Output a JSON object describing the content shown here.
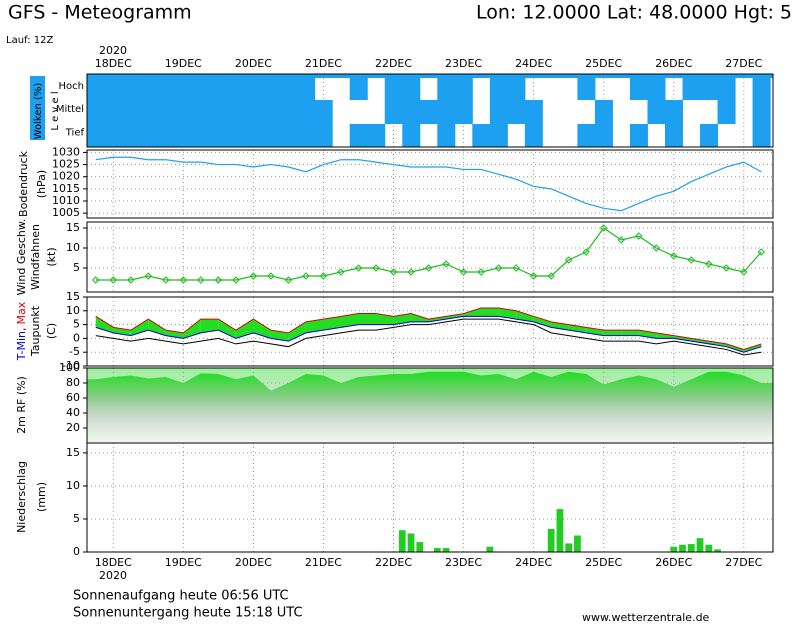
{
  "header": {
    "title": "GFS - Meteogramm",
    "location": "Lon: 12.0000 Lat: 48.0000 Hgt: 5",
    "run": "Lauf: 12Z"
  },
  "footer": {
    "sunrise": "Sonnenaufgang heute 06:56 UTC",
    "sunset": "Sonnenuntergang heute 15:18 UTC",
    "source": "www.wetterzentrale.de"
  },
  "x_axis": {
    "year": "2020",
    "xlim": [
      -9,
      226
    ],
    "xticks": [
      {
        "value": 0,
        "label": "18DEC"
      },
      {
        "value": 24,
        "label": "19DEC"
      },
      {
        "value": 48,
        "label": "20DEC"
      },
      {
        "value": 72,
        "label": "21DEC"
      },
      {
        "value": 96,
        "label": "22DEC"
      },
      {
        "value": 120,
        "label": "23DEC"
      },
      {
        "value": 144,
        "label": "24DEC"
      },
      {
        "value": 168,
        "label": "25DEC"
      },
      {
        "value": 192,
        "label": "26DEC"
      },
      {
        "value": 216,
        "label": "27DEC"
      }
    ],
    "x": [
      -6,
      0,
      6,
      12,
      18,
      24,
      30,
      36,
      42,
      48,
      54,
      60,
      66,
      72,
      78,
      84,
      90,
      96,
      102,
      108,
      114,
      120,
      126,
      132,
      138,
      144,
      150,
      156,
      162,
      168,
      174,
      180,
      186,
      192,
      198,
      204,
      210,
      216,
      222
    ]
  },
  "chart_data": [
    {
      "type": "heatmap",
      "ylabel": "Wolken (%)",
      "ylabel2": "L e v e l",
      "color": "#1ea0f0",
      "levels": [
        {
          "name": "Hoch",
          "values": [
            100,
            100,
            100,
            100,
            100,
            100,
            100,
            100,
            100,
            100,
            100,
            100,
            100,
            0,
            0,
            100,
            0,
            100,
            100,
            0,
            100,
            100,
            0,
            100,
            100,
            0,
            0,
            0,
            100,
            0,
            0,
            100,
            100,
            0,
            100,
            100,
            100,
            0,
            100
          ]
        },
        {
          "name": "Mittel",
          "values": [
            100,
            100,
            100,
            100,
            100,
            100,
            100,
            100,
            100,
            100,
            100,
            100,
            100,
            100,
            0,
            0,
            0,
            100,
            100,
            100,
            100,
            100,
            0,
            100,
            100,
            100,
            0,
            0,
            0,
            100,
            0,
            0,
            100,
            100,
            0,
            0,
            100,
            0,
            100
          ]
        },
        {
          "name": "Tief",
          "values": [
            100,
            100,
            100,
            100,
            100,
            100,
            100,
            100,
            100,
            100,
            100,
            100,
            100,
            100,
            0,
            100,
            100,
            0,
            100,
            0,
            100,
            0,
            100,
            100,
            0,
            100,
            0,
            0,
            100,
            100,
            0,
            100,
            0,
            100,
            0,
            100,
            0,
            0,
            100
          ]
        }
      ]
    },
    {
      "type": "line",
      "ylabel": "Bodendruck",
      "unit": "(hPa)",
      "color": "#1ea0f0",
      "markers": false,
      "values": [
        1027,
        1028,
        1028,
        1027,
        1027,
        1026,
        1026,
        1025,
        1025,
        1024,
        1025,
        1024,
        1022,
        1025,
        1027,
        1027,
        1026,
        1025,
        1024,
        1024,
        1024,
        1023,
        1023,
        1021,
        1019,
        1016,
        1015,
        1012,
        1009,
        1007,
        1006,
        1009,
        1012,
        1014,
        1018,
        1021,
        1024,
        1026,
        1022
      ],
      "ylim": [
        1003,
        1031
      ],
      "yticks": [
        1005,
        1010,
        1015,
        1020,
        1025,
        1030
      ]
    },
    {
      "type": "line",
      "ylabel": "Wind Geschw.",
      "ylabel2": "Windfahnen",
      "unit": "(kt)",
      "color": "#22bb22",
      "markers": true,
      "values": [
        2,
        2,
        2,
        3,
        2,
        2,
        2,
        2,
        2,
        3,
        3,
        2,
        3,
        3,
        4,
        5,
        5,
        4,
        4,
        5,
        6,
        4,
        4,
        5,
        5,
        3,
        3,
        7,
        9,
        15,
        12,
        13,
        10,
        8,
        7,
        6,
        5,
        4,
        9
      ],
      "ylim": [
        -1,
        16.5
      ],
      "yticks": [
        5,
        10,
        15
      ]
    },
    {
      "type": "range",
      "ylabel2": "Taupunkt",
      "unit": "(C)",
      "fill": "#22dd22",
      "series": [
        {
          "name": "T-Min,",
          "color": "#0000cc",
          "values": [
            4,
            2,
            1,
            3,
            1,
            0,
            2,
            3,
            0,
            2,
            0,
            -1,
            2,
            3,
            4,
            5,
            5,
            5,
            6,
            6,
            7,
            8,
            8,
            8,
            7,
            6,
            4,
            3,
            2,
            1,
            1,
            1,
            0,
            0,
            -1,
            -2,
            -3,
            -5,
            -3
          ]
        },
        {
          "name": "Max",
          "color": "#dd0000",
          "values": [
            8,
            4,
            3,
            7,
            3,
            2,
            7,
            7,
            3,
            7,
            3,
            2,
            6,
            7,
            8,
            9,
            9,
            8,
            9,
            7,
            8,
            9,
            11,
            11,
            10,
            8,
            6,
            5,
            4,
            3,
            3,
            3,
            2,
            1,
            0,
            -1,
            -2,
            -4,
            -2
          ]
        },
        {
          "name": "Taupunkt",
          "color": "#000000",
          "values": [
            1,
            0,
            -1,
            0,
            -1,
            -2,
            -1,
            0,
            -2,
            -1,
            -2,
            -3,
            0,
            1,
            2,
            3,
            3,
            4,
            5,
            5,
            6,
            7,
            7,
            7,
            6,
            5,
            2,
            1,
            0,
            -1,
            -1,
            -1,
            -2,
            -1,
            -2,
            -3,
            -4,
            -6,
            -5
          ]
        }
      ],
      "ylim": [
        -10,
        15
      ],
      "yticks": [
        -10,
        -5,
        0,
        5,
        10,
        15
      ]
    },
    {
      "type": "area",
      "ylabel": "2m RF (%)",
      "color": "#22dd22",
      "values": [
        85,
        88,
        90,
        86,
        88,
        80,
        93,
        92,
        85,
        90,
        70,
        80,
        92,
        90,
        80,
        88,
        90,
        92,
        92,
        95,
        95,
        95,
        90,
        92,
        85,
        95,
        88,
        95,
        92,
        78,
        85,
        90,
        85,
        75,
        85,
        95,
        95,
        90,
        80
      ],
      "ylim": [
        0,
        100
      ],
      "yticks": [
        20,
        40,
        60,
        80,
        100
      ]
    },
    {
      "type": "bar",
      "ylabel": "Niederschlag",
      "unit": "(mm)",
      "color": "#22cc22",
      "x": [
        99,
        102,
        105,
        111,
        114,
        129,
        150,
        153,
        156,
        159,
        192,
        195,
        198,
        201,
        204,
        207
      ],
      "values": [
        3.3,
        2.8,
        1.5,
        0.6,
        0.6,
        0.8,
        3.5,
        6.5,
        1.3,
        2.5,
        0.8,
        1.1,
        1.2,
        2.1,
        1.1,
        0.4
      ],
      "ylim": [
        0,
        16.5
      ],
      "yticks": [
        0,
        5,
        10,
        15
      ]
    }
  ]
}
